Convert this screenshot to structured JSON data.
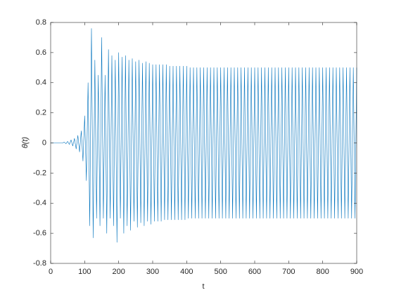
{
  "chart_data": {
    "type": "line",
    "xlabel": "t",
    "ylabel": "θ(t)",
    "x": [
      0,
      5,
      10,
      15,
      20,
      25,
      30,
      35,
      40,
      45,
      50,
      55,
      60,
      65,
      70,
      75,
      80,
      85,
      90,
      95,
      100,
      105,
      110,
      115,
      120,
      125,
      130,
      135,
      140,
      145,
      150,
      155,
      160,
      165,
      170,
      175,
      180,
      185,
      190,
      195,
      200,
      205,
      210,
      215,
      220,
      225,
      230,
      235,
      240,
      245,
      250,
      255,
      260,
      265,
      270,
      275,
      280,
      285,
      290,
      295,
      300,
      305,
      310,
      315,
      320,
      325,
      330,
      335,
      340,
      345,
      350,
      355,
      360,
      365,
      370,
      375,
      380,
      385,
      390,
      395,
      400,
      405,
      410,
      415,
      420,
      425,
      430,
      435,
      440,
      445,
      450,
      455,
      460,
      465,
      470,
      475,
      480,
      485,
      490,
      495,
      500,
      505,
      510,
      515,
      520,
      525,
      530,
      535,
      540,
      545,
      550,
      555,
      560,
      565,
      570,
      575,
      580,
      585,
      590,
      595,
      600,
      605,
      610,
      615,
      620,
      625,
      630,
      635,
      640,
      645,
      650,
      655,
      660,
      665,
      670,
      675,
      680,
      685,
      690,
      695,
      700,
      705,
      710,
      715,
      720,
      725,
      730,
      735,
      740,
      745,
      750,
      755,
      760,
      765,
      770,
      775,
      780,
      785,
      790,
      795,
      800,
      805,
      810,
      815,
      820,
      825,
      830,
      835,
      840,
      845,
      850,
      855,
      860,
      865,
      870,
      875,
      880,
      885,
      890,
      895,
      900
    ],
    "series": [
      {
        "color": "#0072bd",
        "values": [
          0,
          0,
          0,
          0,
          0,
          0,
          0,
          0,
          0.005,
          -0.005,
          0.01,
          -0.01,
          0.02,
          -0.02,
          0.03,
          -0.04,
          0.05,
          -0.06,
          0.08,
          -0.12,
          0.18,
          -0.25,
          0.4,
          -0.55,
          0.76,
          -0.63,
          0.55,
          -0.5,
          0.45,
          -0.55,
          0.7,
          -0.5,
          0.45,
          -0.6,
          0.62,
          -0.5,
          0.58,
          -0.55,
          0.55,
          -0.66,
          0.6,
          -0.5,
          0.57,
          -0.6,
          0.58,
          -0.55,
          0.55,
          -0.58,
          0.56,
          -0.52,
          0.54,
          -0.56,
          0.55,
          -0.53,
          0.53,
          -0.55,
          0.54,
          -0.52,
          0.53,
          -0.54,
          0.52,
          -0.52,
          0.52,
          -0.52,
          0.52,
          -0.52,
          0.52,
          -0.51,
          0.52,
          -0.51,
          0.51,
          -0.51,
          0.51,
          -0.51,
          0.51,
          -0.51,
          0.51,
          -0.51,
          0.51,
          -0.51,
          0.51,
          -0.5,
          0.5,
          -0.5,
          0.5,
          -0.5,
          0.5,
          -0.5,
          0.5,
          -0.5,
          0.5,
          -0.5,
          0.5,
          -0.5,
          0.5,
          -0.5,
          0.5,
          -0.5,
          0.5,
          -0.5,
          0.5,
          -0.5,
          0.5,
          -0.5,
          0.5,
          -0.5,
          0.5,
          -0.5,
          0.5,
          -0.5,
          0.5,
          -0.5,
          0.5,
          -0.5,
          0.5,
          -0.5,
          0.5,
          -0.5,
          0.5,
          -0.5,
          0.5,
          -0.5,
          0.5,
          -0.5,
          0.5,
          -0.5,
          0.5,
          -0.5,
          0.5,
          -0.5,
          0.5,
          -0.5,
          0.5,
          -0.5,
          0.5,
          -0.5,
          0.5,
          -0.5,
          0.5,
          -0.5,
          0.5,
          -0.5,
          0.5,
          -0.5,
          0.5,
          -0.5,
          0.5,
          -0.5,
          0.5,
          -0.5,
          0.5,
          -0.5,
          0.5,
          -0.5,
          0.5,
          -0.5,
          0.5,
          -0.5,
          0.5,
          -0.5,
          0.5,
          -0.5,
          0.5,
          -0.5,
          0.5,
          -0.5,
          0.5,
          -0.5,
          0.5,
          -0.5,
          0.5,
          -0.5,
          0.5,
          -0.5,
          0.5,
          -0.5,
          0.5,
          -0.5,
          0.5,
          -0.5,
          0.5
        ]
      }
    ],
    "xlim": [
      0,
      900
    ],
    "xticks": [
      0,
      100,
      200,
      300,
      400,
      500,
      600,
      700,
      800,
      900
    ],
    "ylim": [
      -0.8,
      0.8
    ],
    "yticks": [
      -0.8,
      -0.6,
      -0.4,
      -0.2,
      0,
      0.2,
      0.4,
      0.6,
      0.8
    ],
    "grid": false,
    "box": true
  }
}
